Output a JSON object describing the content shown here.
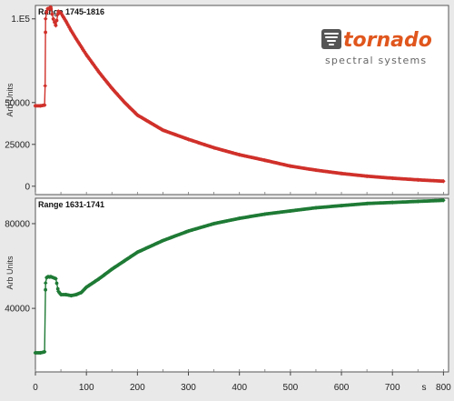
{
  "logo": {
    "wordmark": "tornado",
    "subtitle": "spectral systems",
    "color": "#e0561d"
  },
  "chart_data": [
    {
      "type": "scatter",
      "title": "Range 1745-1816",
      "xlabel": "",
      "ylabel": "Arb Units",
      "xlim": [
        0,
        810
      ],
      "ylim": [
        -5000,
        108000
      ],
      "yticks": [
        0,
        25000,
        50000,
        100000
      ],
      "ytick_labels": [
        "0",
        "25000",
        "50000",
        "1.E5"
      ],
      "grid": false,
      "series": [
        {
          "color": "#d0302a",
          "x": [
            0,
            10,
            18,
            19,
            20,
            22,
            24,
            26,
            28,
            30,
            35,
            40,
            45,
            50,
            55,
            60,
            70,
            80,
            100,
            125,
            150,
            175,
            200,
            250,
            300,
            350,
            400,
            450,
            500,
            550,
            600,
            650,
            700,
            750,
            800
          ],
          "y": [
            48000,
            48000,
            48500,
            60000,
            100000,
            104000,
            106000,
            106000,
            106500,
            107000,
            100000,
            96000,
            104500,
            103500,
            101000,
            98500,
            93000,
            88000,
            78500,
            68000,
            58500,
            50000,
            42500,
            33500,
            28000,
            23000,
            18800,
            15500,
            12000,
            9600,
            7600,
            6000,
            4800,
            3800,
            3000
          ]
        }
      ]
    },
    {
      "type": "scatter",
      "title": "Range 1631-1741",
      "xlabel": "s",
      "ylabel": "Arb Units",
      "xlim": [
        0,
        810
      ],
      "ylim": [
        10000,
        92000
      ],
      "xticks": [
        0,
        100,
        200,
        300,
        400,
        500,
        600,
        700,
        800
      ],
      "yticks": [
        40000,
        80000
      ],
      "ytick_labels": [
        "40000",
        "80000"
      ],
      "grid": false,
      "series": [
        {
          "color": "#1e7a35",
          "x": [
            0,
            10,
            18,
            20,
            22,
            25,
            28,
            30,
            40,
            45,
            50,
            60,
            70,
            80,
            90,
            100,
            125,
            150,
            175,
            200,
            250,
            300,
            350,
            400,
            450,
            500,
            550,
            600,
            650,
            700,
            750,
            800
          ],
          "y": [
            19000,
            19000,
            19500,
            52000,
            54500,
            55000,
            54800,
            55000,
            54000,
            48000,
            46500,
            46500,
            46000,
            46500,
            47500,
            50000,
            54000,
            58500,
            62500,
            66500,
            72000,
            76500,
            80000,
            82500,
            84500,
            86000,
            87500,
            88500,
            89500,
            90000,
            90500,
            91000
          ]
        }
      ]
    }
  ]
}
